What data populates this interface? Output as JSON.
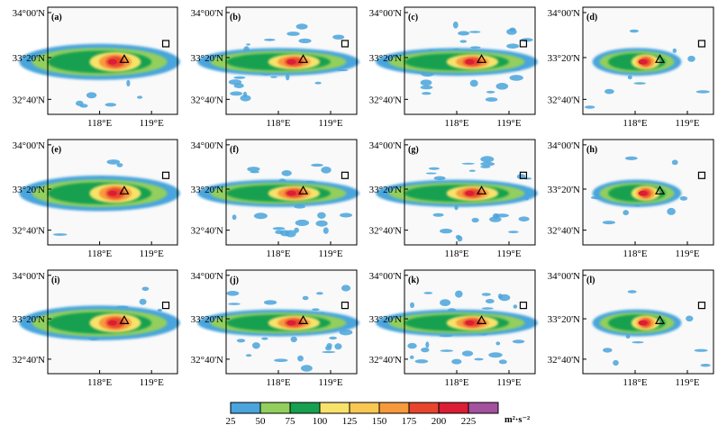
{
  "figure": {
    "y_tick_labels": [
      "34°00'N",
      "33°20'N",
      "32°40'N"
    ],
    "x_tick_labels": [
      "118°E",
      "119°E"
    ],
    "panels": [
      {
        "label": "(a)"
      },
      {
        "label": "(b)"
      },
      {
        "label": "(c)"
      },
      {
        "label": "(d)"
      },
      {
        "label": "(e)"
      },
      {
        "label": "(f)"
      },
      {
        "label": "(g)"
      },
      {
        "label": "(h)"
      },
      {
        "label": "(i)"
      },
      {
        "label": "(j)"
      },
      {
        "label": "(k)"
      },
      {
        "label": "(l)"
      }
    ]
  },
  "colorbar": {
    "ticks": [
      "25",
      "50",
      "75",
      "100",
      "125",
      "150",
      "175",
      "200",
      "225"
    ],
    "unit": "m²·s⁻²",
    "colors": [
      "#4aa5dc",
      "#92cf5c",
      "#17a050",
      "#f8e36a",
      "#f9c852",
      "#f79a3c",
      "#e8452f",
      "#db1d35",
      "#a4519e"
    ]
  }
}
